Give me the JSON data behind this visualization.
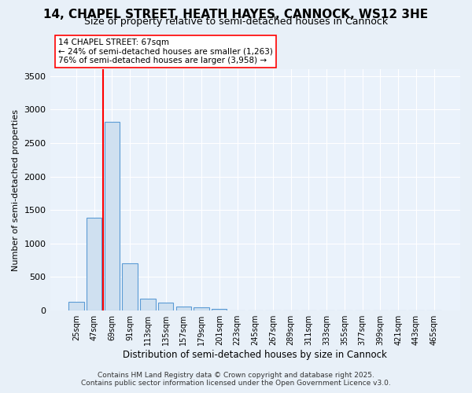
{
  "title": "14, CHAPEL STREET, HEATH HAYES, CANNOCK, WS12 3HE",
  "subtitle": "Size of property relative to semi-detached houses in Cannock",
  "xlabel": "Distribution of semi-detached houses by size in Cannock",
  "ylabel": "Number of semi-detached properties",
  "categories": [
    "25sqm",
    "47sqm",
    "69sqm",
    "91sqm",
    "113sqm",
    "135sqm",
    "157sqm",
    "179sqm",
    "201sqm",
    "223sqm",
    "245sqm",
    "267sqm",
    "289sqm",
    "311sqm",
    "333sqm",
    "355sqm",
    "377sqm",
    "399sqm",
    "421sqm",
    "443sqm",
    "465sqm"
  ],
  "values": [
    130,
    1380,
    2820,
    700,
    175,
    110,
    55,
    40,
    20,
    0,
    0,
    0,
    0,
    0,
    0,
    0,
    0,
    0,
    0,
    0,
    0
  ],
  "bar_color": "#cfe0f0",
  "bar_edge_color": "#5b9bd5",
  "annotation_text_line1": "14 CHAPEL STREET: 67sqm",
  "annotation_text_line2": "← 24% of semi-detached houses are smaller (1,263)",
  "annotation_text_line3": "76% of semi-detached houses are larger (3,958) →",
  "ylim": [
    0,
    3600
  ],
  "yticks": [
    0,
    500,
    1000,
    1500,
    2000,
    2500,
    3000,
    3500
  ],
  "bg_color": "#e8f0f8",
  "plot_bg_color": "#eaf2fb",
  "grid_color": "#ffffff",
  "footer_line1": "Contains HM Land Registry data © Crown copyright and database right 2025.",
  "footer_line2": "Contains public sector information licensed under the Open Government Licence v3.0."
}
